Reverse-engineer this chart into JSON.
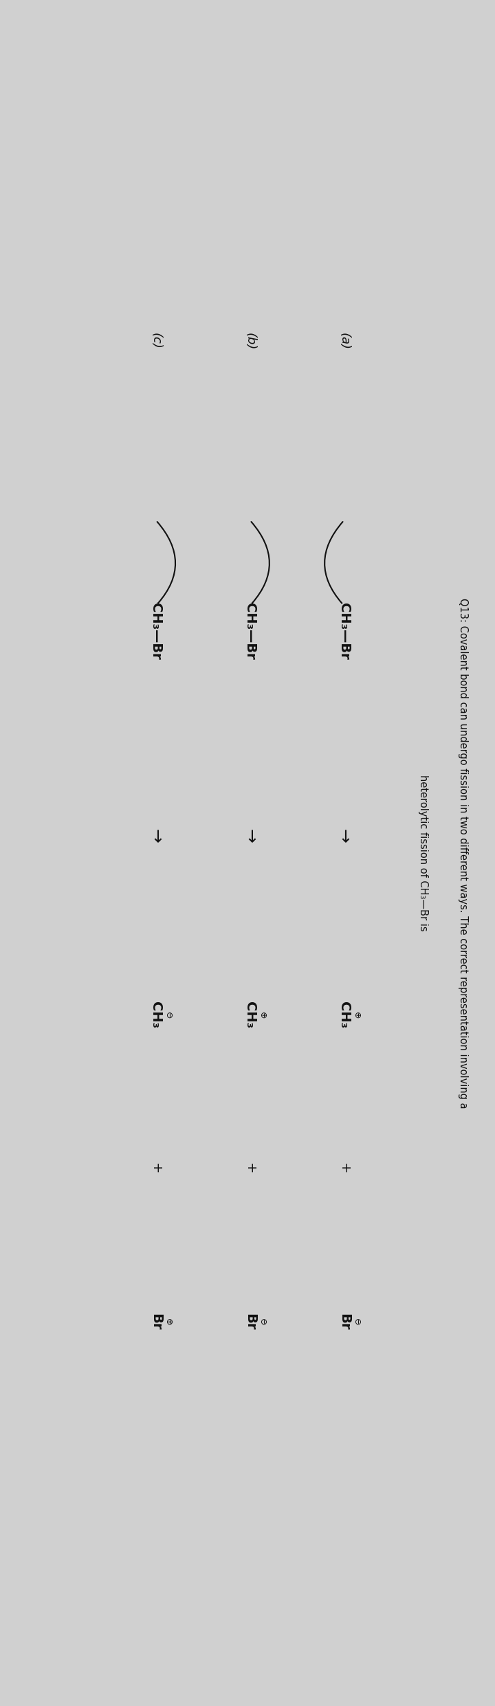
{
  "bg_color": "#d0d0d0",
  "text_color": "#111111",
  "title_line1": "Q13: Covalent bond can undergo fission in two different ways. The correct representation involving a",
  "title_line2": "heterolytic fission of CH₃—Br is",
  "label_a": "(a)",
  "label_b": "(b)",
  "label_c": "(c)",
  "reactant": "CH₃—Br",
  "product_ch3": "CH₃",
  "product_br": "Br",
  "plus": "+",
  "arrow_right": "→",
  "charge_plus": "⊕",
  "charge_minus": "⊖",
  "a_ch3_charge": "⊕",
  "a_br_charge": "⊖",
  "b_ch3_charge": "⊕",
  "b_br_charge": "⊖",
  "c_ch3_charge": "⊖",
  "c_br_charge": "⊕",
  "figsize": [
    7.2,
    24.82
  ],
  "dpi": 100,
  "rotation": -90,
  "fs_title": 10.5,
  "fs_label": 13,
  "fs_chem": 14,
  "fs_charge": 9,
  "fs_arrow": 18,
  "fs_plus": 14
}
